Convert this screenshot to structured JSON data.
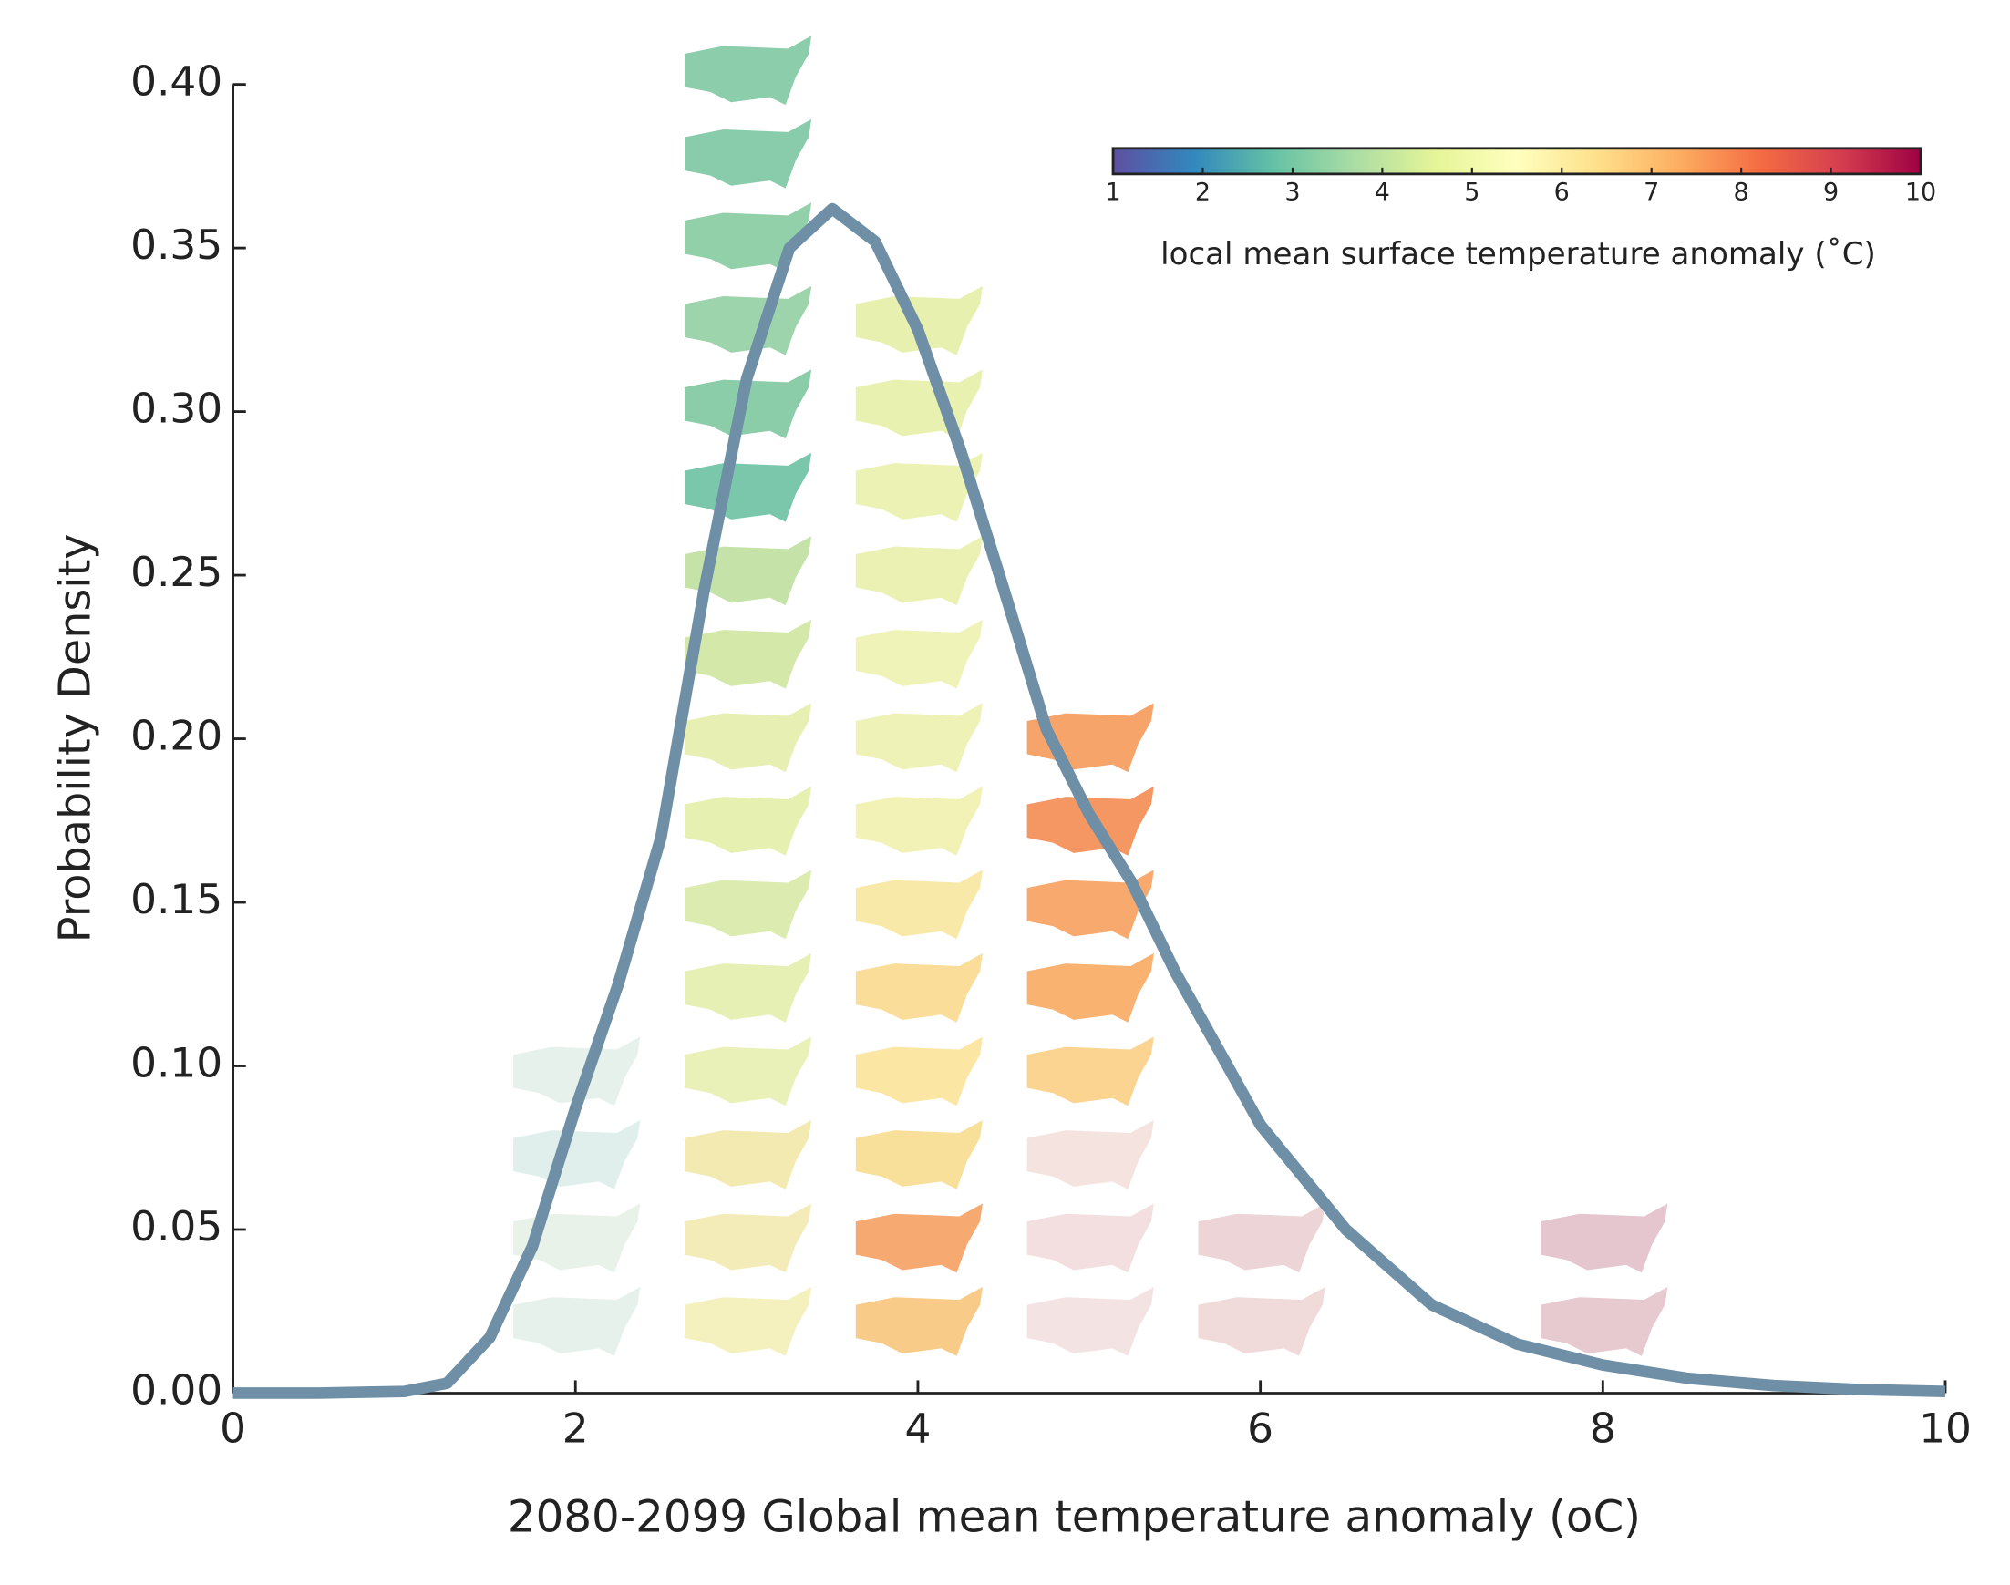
{
  "chart_data": {
    "type": "line",
    "x_label": "2080-2099 Global mean temperature anomaly (oC)",
    "y_label": "Probability Density",
    "x": [
      0,
      0.5,
      1,
      1.25,
      1.5,
      1.75,
      2,
      2.25,
      2.5,
      2.75,
      3,
      3.25,
      3.5,
      3.75,
      4,
      4.25,
      4.5,
      4.75,
      5,
      5.25,
      5.5,
      6,
      6.5,
      7,
      7.5,
      8,
      8.5,
      9,
      9.5,
      10
    ],
    "series": [
      {
        "name": "Probability Density",
        "color": "#6e8fa5",
        "values": [
          0,
          0,
          0.0005,
          0.003,
          0.017,
          0.045,
          0.087,
          0.125,
          0.17,
          0.245,
          0.31,
          0.35,
          0.362,
          0.352,
          0.325,
          0.288,
          0.246,
          0.203,
          0.177,
          0.156,
          0.129,
          0.082,
          0.05,
          0.027,
          0.015,
          0.0086,
          0.0045,
          0.0023,
          0.0011,
          0.0005
        ]
      }
    ],
    "xlim": [
      0,
      10
    ],
    "xticks": [
      0,
      2,
      4,
      6,
      8,
      10
    ],
    "ylim": [
      0,
      0.4
    ],
    "yticks": [
      {
        "value": 0,
        "label": "0.00"
      },
      {
        "value": 0.05,
        "label": "0.05"
      },
      {
        "value": 0.1,
        "label": "0.10"
      },
      {
        "value": 0.15,
        "label": "0.15"
      },
      {
        "value": 0.2,
        "label": "0.20"
      },
      {
        "value": 0.25,
        "label": "0.25"
      },
      {
        "value": 0.3,
        "label": "0.30"
      },
      {
        "value": 0.35,
        "label": "0.35"
      },
      {
        "value": 0.4,
        "label": "0.40"
      }
    ],
    "colorbar": {
      "label": "local mean surface temperature anomaly (˚C)",
      "clim": [
        1,
        10
      ],
      "ticks": [
        1,
        2,
        3,
        4,
        5,
        6,
        7,
        8,
        9,
        10
      ],
      "colors": [
        "#5e4fa2",
        "#3288bd",
        "#66c2a5",
        "#abdda4",
        "#e6f598",
        "#ffffbf",
        "#fee08b",
        "#fdae61",
        "#f46d43",
        "#d53e4f",
        "#9e0142"
      ]
    }
  }
}
